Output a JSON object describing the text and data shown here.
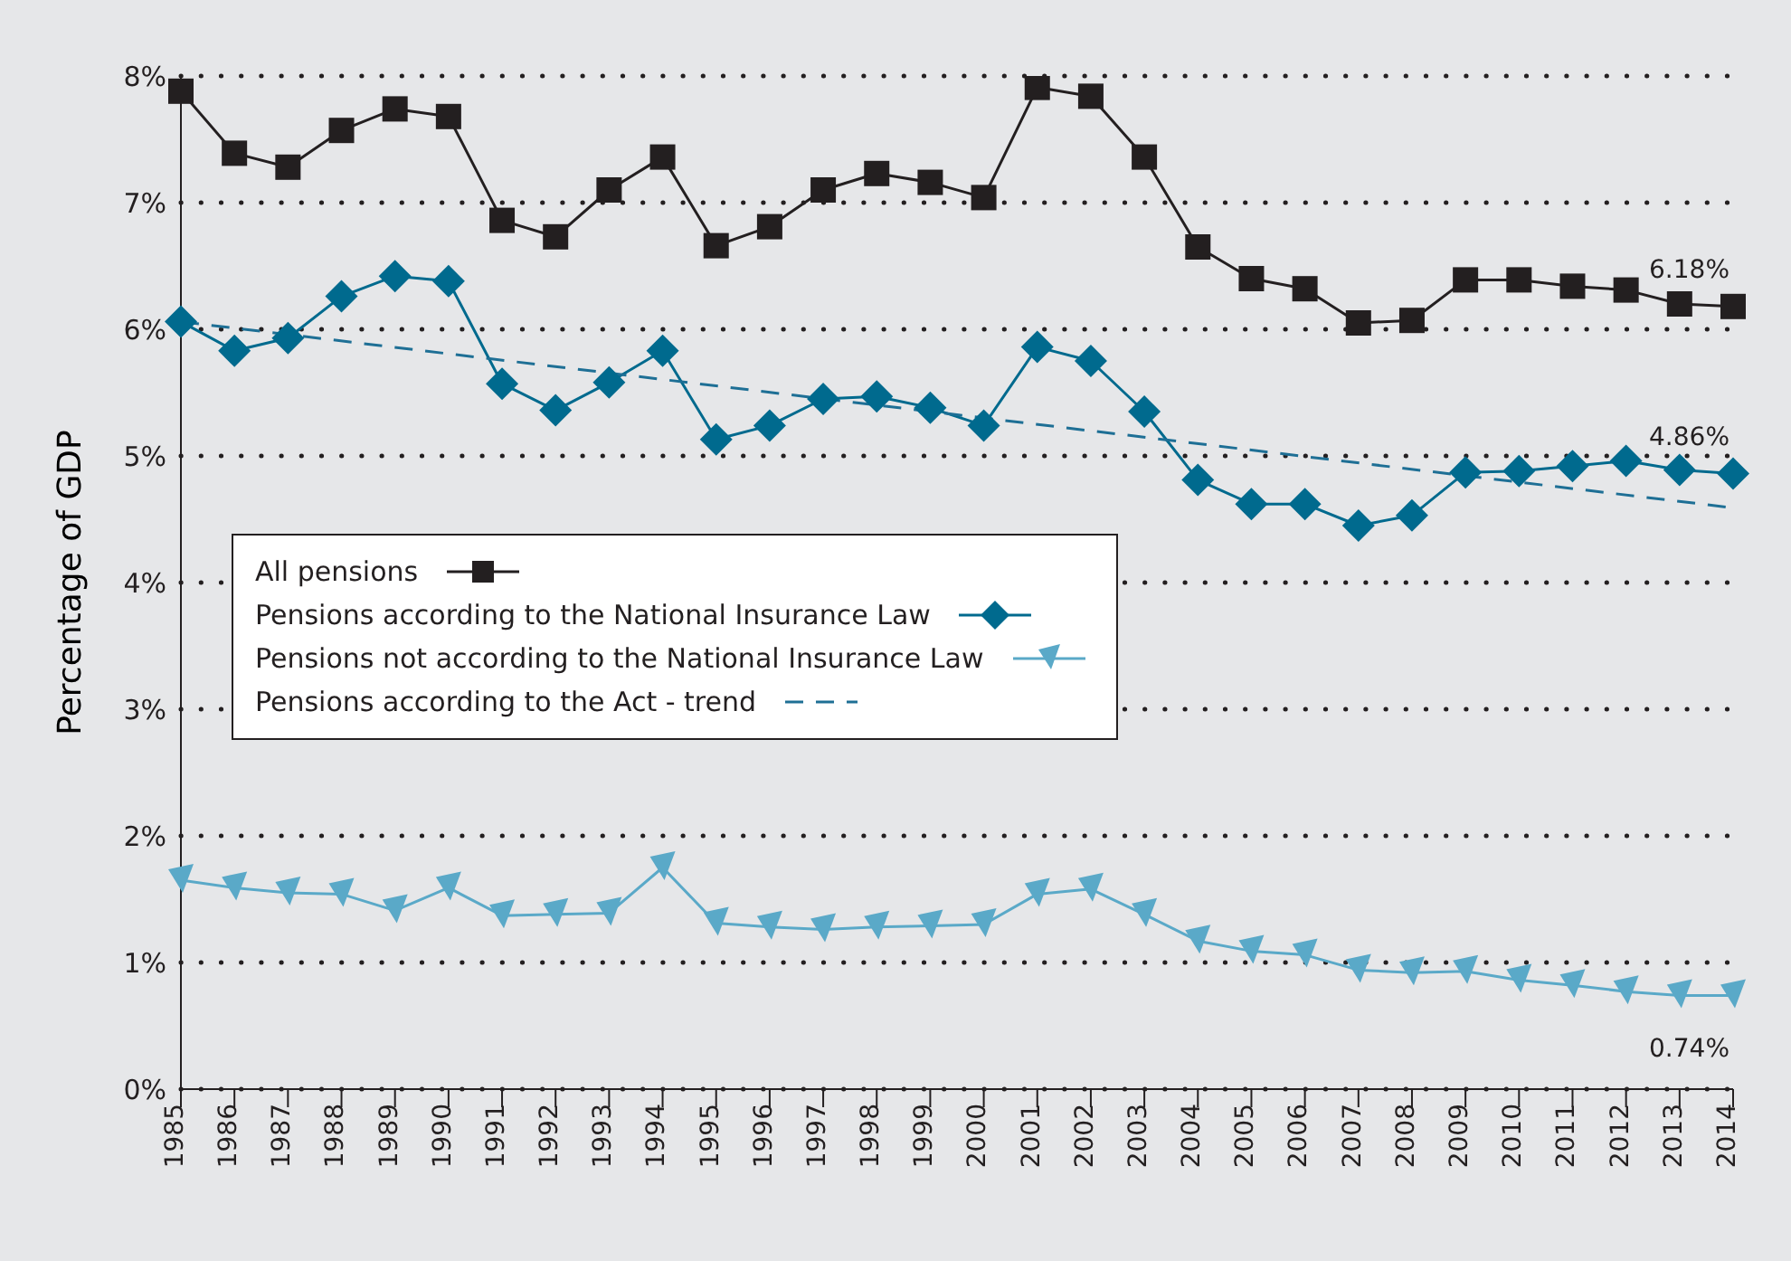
{
  "chart_data": {
    "type": "line",
    "ylabel": "Percentage of GDP",
    "categories": [
      "1985",
      "1986",
      "1987",
      "1988",
      "1989",
      "1990",
      "1991",
      "1992",
      "1993",
      "1994",
      "1995",
      "1996",
      "1997",
      "1998",
      "1999",
      "2000",
      "2001",
      "2002",
      "2003",
      "2004",
      "2005",
      "2006",
      "2007",
      "2008",
      "2009",
      "2010",
      "2011",
      "2012",
      "2013",
      "2014"
    ],
    "series": [
      {
        "name": "All pensions",
        "color": "#231f20",
        "marker": "square",
        "values": [
          7.88,
          7.39,
          7.28,
          7.57,
          7.74,
          7.68,
          6.86,
          6.73,
          7.1,
          7.36,
          6.66,
          6.81,
          7.1,
          7.23,
          7.16,
          7.04,
          7.91,
          7.84,
          7.36,
          6.65,
          6.4,
          6.32,
          6.05,
          6.07,
          6.39,
          6.39,
          6.34,
          6.31,
          6.2,
          6.18
        ]
      },
      {
        "name": "Pensions according to the National Insurance Law",
        "color": "#006a8e",
        "marker": "diamond",
        "values": [
          6.06,
          5.83,
          5.93,
          6.26,
          6.42,
          6.38,
          5.57,
          5.36,
          5.58,
          5.83,
          5.13,
          5.24,
          5.45,
          5.47,
          5.38,
          5.24,
          5.86,
          5.75,
          5.35,
          4.81,
          4.62,
          4.62,
          4.45,
          4.53,
          4.87,
          4.88,
          4.92,
          4.96,
          4.89,
          4.86
        ]
      },
      {
        "name": "Pensions not according to the National Insurance Law",
        "color": "#5aa9c8",
        "marker": "triangle",
        "values": [
          1.65,
          1.59,
          1.55,
          1.54,
          1.41,
          1.59,
          1.37,
          1.38,
          1.39,
          1.75,
          1.31,
          1.28,
          1.26,
          1.28,
          1.29,
          1.3,
          1.54,
          1.58,
          1.38,
          1.17,
          1.09,
          1.06,
          0.94,
          0.92,
          0.93,
          0.86,
          0.82,
          0.77,
          0.74,
          0.74
        ]
      },
      {
        "name": "Pensions according to the Act - trend",
        "color": "#1e6f95",
        "marker": "none",
        "line_style": "dashed",
        "values": [
          6.06,
          null,
          null,
          null,
          null,
          null,
          null,
          null,
          null,
          null,
          null,
          null,
          null,
          null,
          null,
          null,
          null,
          null,
          null,
          null,
          null,
          null,
          null,
          null,
          null,
          null,
          null,
          null,
          null,
          4.59
        ]
      }
    ],
    "ylim": [
      0,
      8
    ],
    "yticks": [
      {
        "value": 0,
        "label": "0%"
      },
      {
        "value": 1,
        "label": "1%"
      },
      {
        "value": 2,
        "label": "2%"
      },
      {
        "value": 3,
        "label": "3%"
      },
      {
        "value": 4,
        "label": "4%"
      },
      {
        "value": 5,
        "label": "5%"
      },
      {
        "value": 6,
        "label": "6%"
      },
      {
        "value": 7,
        "label": "7%"
      },
      {
        "value": 8,
        "label": "8%"
      }
    ],
    "grid": "y",
    "legend": "left",
    "annotations": [
      {
        "text": "6.18%",
        "x": "2014",
        "y": 6.18
      },
      {
        "text": "4.86%",
        "x": "2014",
        "y": 4.86
      },
      {
        "text": "0.74%",
        "x": "2014",
        "y": 0.74
      }
    ]
  }
}
